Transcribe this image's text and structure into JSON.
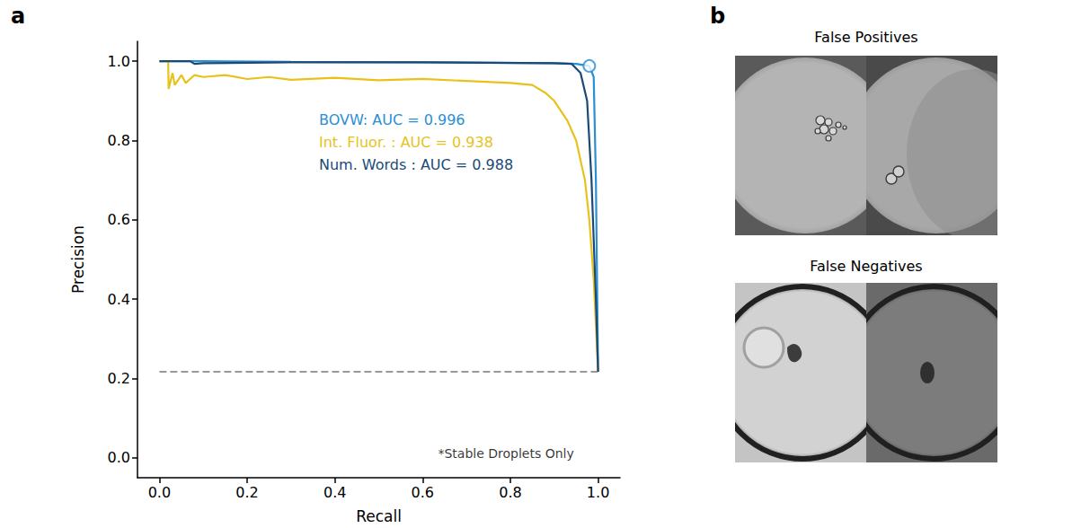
{
  "chart_data": {
    "type": "line",
    "x_label": "Recall",
    "y_label": "Precision",
    "xlim": [
      -0.05,
      1.05
    ],
    "ylim": [
      -0.05,
      1.05
    ],
    "xticks": [
      {
        "value": 0,
        "label": "0.0"
      },
      0.2,
      0.4,
      0.6,
      0.8,
      {
        "value": 1,
        "label": "1.0"
      }
    ],
    "yticks": [
      {
        "value": 0,
        "label": "0.0"
      },
      0.2,
      0.4,
      0.6,
      0.8,
      {
        "value": 1,
        "label": "1.0"
      }
    ],
    "grid": false,
    "legend": "upper right",
    "series": [
      {
        "name": "BOVW: AUC = 0.996",
        "color": "#2a8fd4",
        "x": [
          0,
          0.1,
          0.3,
          0.6,
          0.9,
          0.95,
          0.98,
          0.99,
          0.995,
          1.0
        ],
        "values": [
          1.0,
          1.0,
          0.998,
          0.997,
          0.995,
          0.993,
          0.988,
          0.96,
          0.7,
          0.217
        ]
      },
      {
        "name": "Int. Fluor. : AUC = 0.938",
        "color": "#e8c21c",
        "x": [
          0,
          0.02,
          0.021,
          0.03,
          0.035,
          0.05,
          0.06,
          0.08,
          0.1,
          0.15,
          0.2,
          0.25,
          0.3,
          0.4,
          0.5,
          0.6,
          0.7,
          0.8,
          0.85,
          0.88,
          0.9,
          0.93,
          0.95,
          0.97,
          0.98,
          0.99,
          1.0
        ],
        "values": [
          1.0,
          1.0,
          0.93,
          0.97,
          0.94,
          0.965,
          0.945,
          0.965,
          0.96,
          0.965,
          0.955,
          0.96,
          0.953,
          0.958,
          0.952,
          0.955,
          0.95,
          0.945,
          0.94,
          0.92,
          0.9,
          0.85,
          0.8,
          0.7,
          0.6,
          0.45,
          0.217
        ]
      },
      {
        "name": "Num. Words : AUC = 0.988",
        "color": "#1b4a78",
        "x": [
          0,
          0.07,
          0.08,
          0.1,
          0.3,
          0.6,
          0.9,
          0.94,
          0.96,
          0.975,
          0.985,
          0.995,
          1.0
        ],
        "values": [
          1.0,
          1.0,
          0.993,
          0.995,
          0.997,
          0.997,
          0.995,
          0.993,
          0.97,
          0.9,
          0.7,
          0.4,
          0.217
        ]
      }
    ],
    "reference_line": {
      "x": [
        0,
        1.0
      ],
      "values": [
        0.217,
        0.217
      ],
      "color": "#999999",
      "line_style": "dashed"
    },
    "points": [
      {
        "x": 0.98,
        "y": 0.988,
        "color": "#2a8fd4",
        "marker": "circle"
      }
    ],
    "annotations": [
      {
        "text": "*Stable Droplets Only",
        "x": 0.945,
        "y": 0.01
      }
    ]
  },
  "panels": [
    {
      "label": "a"
    },
    {
      "label": "b",
      "image_groups": [
        "False Positives",
        "False Negatives"
      ]
    }
  ]
}
